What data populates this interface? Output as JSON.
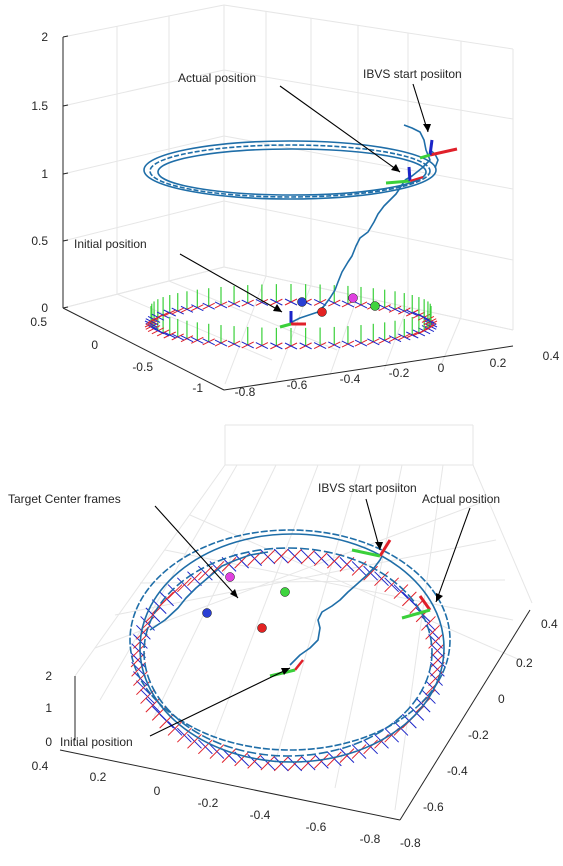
{
  "colors": {
    "trajectory": "#1f6ea8",
    "frame_x": "#e0202a",
    "frame_y": "#3ad03a",
    "frame_z": "#1a24c8",
    "marker_red": "#e32222",
    "marker_blue": "#2a3fd4",
    "marker_green": "#3fd43f",
    "marker_magenta": "#e040e0"
  },
  "chart_data": [
    {
      "type": "line",
      "view": "3d-perspective",
      "grid": true,
      "zlim": [
        0,
        2
      ],
      "xlim": [
        -0.8,
        0.4
      ],
      "ylim": [
        -1,
        0.5
      ],
      "z_ticks": [
        "0",
        "0.5",
        "1",
        "1.5",
        "2"
      ],
      "y_ticks": [
        "0.5",
        "0",
        "-0.5",
        "-1"
      ],
      "x_ticks": [
        "-0.8",
        "-0.6",
        "-0.4",
        "-0.2",
        "0",
        "0.2",
        "0.4"
      ],
      "annotations": [
        "Actual position",
        "IBVS start posiiton",
        "Initial position"
      ],
      "series": [
        {
          "kind": "trajectory",
          "description": "helical camera trajectory: rise from 0 to ~1 then loops at z~1"
        },
        {
          "kind": "frames",
          "description": "target ring of coordinate frames at z=0"
        }
      ]
    },
    {
      "type": "line",
      "view": "3d-top-oblique",
      "grid": true,
      "zlim": [
        0,
        2
      ],
      "xlim": [
        -0.8,
        0.4
      ],
      "ylim": [
        -0.8,
        0.4
      ],
      "z_ticks": [
        "0",
        "1",
        "2"
      ],
      "x_ticks": [
        "0.4",
        "0.2",
        "0",
        "-0.2",
        "-0.4",
        "-0.6",
        "-0.8"
      ],
      "y_ticks": [
        "0.4",
        "0.2",
        "0",
        "-0.2",
        "-0.4",
        "-0.6",
        "-0.8"
      ],
      "annotations": [
        "Target Center frames",
        "IBVS start posiiton",
        "Actual position",
        "Initial position"
      ],
      "series": [
        {
          "kind": "trajectory",
          "description": "same trajectory viewed from above"
        },
        {
          "kind": "frames",
          "description": "target ring of coordinate frames"
        }
      ]
    }
  ]
}
